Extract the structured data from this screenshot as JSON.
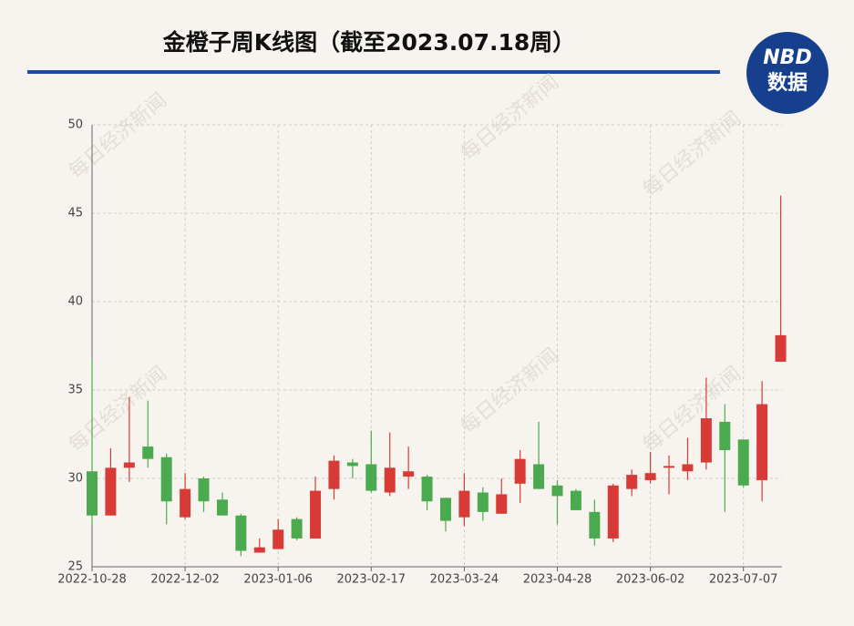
{
  "chart_data": {
    "type": "candlestick",
    "title": "金橙子周K线图（截至2023.07.18周）",
    "logo": {
      "top": "NBD",
      "bottom": "数据"
    },
    "watermark": "每日经济新闻",
    "categories": [
      "2022-10-28",
      null,
      null,
      null,
      null,
      "2022-12-02",
      null,
      null,
      null,
      null,
      "2023-01-06",
      null,
      null,
      null,
      null,
      "2023-02-17",
      null,
      null,
      null,
      null,
      "2023-03-24",
      null,
      null,
      null,
      null,
      "2023-04-28",
      null,
      null,
      null,
      null,
      "2023-06-02",
      null,
      null,
      null,
      null,
      "2023-07-07",
      null,
      null
    ],
    "open": [
      30.4,
      27.9,
      30.6,
      31.8,
      31.2,
      27.8,
      30.0,
      28.8,
      27.9,
      25.8,
      26.0,
      27.7,
      26.6,
      29.4,
      30.9,
      30.8,
      29.2,
      30.1,
      30.1,
      28.9,
      27.8,
      29.2,
      28.0,
      29.7,
      30.8,
      29.6,
      29.3,
      28.1,
      26.6,
      29.4,
      29.9,
      30.6,
      30.4,
      30.9,
      33.2,
      32.2,
      29.9,
      36.6
    ],
    "close": [
      27.9,
      30.6,
      30.9,
      31.1,
      28.7,
      29.4,
      28.7,
      27.9,
      25.9,
      26.1,
      27.1,
      26.6,
      29.3,
      31.0,
      30.7,
      29.3,
      30.6,
      30.4,
      28.7,
      27.6,
      29.3,
      28.1,
      29.1,
      31.1,
      29.4,
      29.0,
      28.2,
      26.6,
      29.6,
      30.2,
      30.3,
      30.7,
      30.8,
      33.4,
      31.6,
      29.6,
      34.2,
      38.1
    ],
    "high": [
      36.7,
      31.7,
      34.6,
      34.4,
      31.4,
      30.3,
      30.1,
      29.2,
      28.0,
      26.6,
      27.7,
      27.8,
      30.1,
      31.3,
      31.1,
      32.7,
      32.6,
      31.8,
      30.2,
      28.9,
      30.3,
      29.5,
      30.0,
      31.6,
      33.2,
      29.9,
      29.4,
      28.8,
      29.7,
      30.5,
      31.5,
      31.3,
      32.3,
      35.7,
      34.2,
      32.2,
      35.5,
      46.0
    ],
    "low": [
      27.4,
      27.9,
      29.8,
      30.6,
      27.4,
      27.7,
      28.1,
      27.9,
      25.6,
      25.8,
      26.0,
      26.5,
      26.6,
      28.8,
      30.0,
      29.2,
      29.0,
      29.4,
      28.2,
      27.0,
      27.3,
      27.6,
      28.0,
      28.6,
      29.4,
      27.4,
      28.2,
      26.2,
      26.4,
      29.0,
      29.7,
      29.1,
      29.9,
      30.5,
      28.1,
      29.5,
      28.7,
      36.6
    ],
    "up_color": "#d83b36",
    "down_color": "#4caa4e",
    "ylim": [
      25,
      50
    ],
    "yticks": [
      25,
      30,
      35,
      40,
      45,
      50
    ],
    "grid": true
  }
}
